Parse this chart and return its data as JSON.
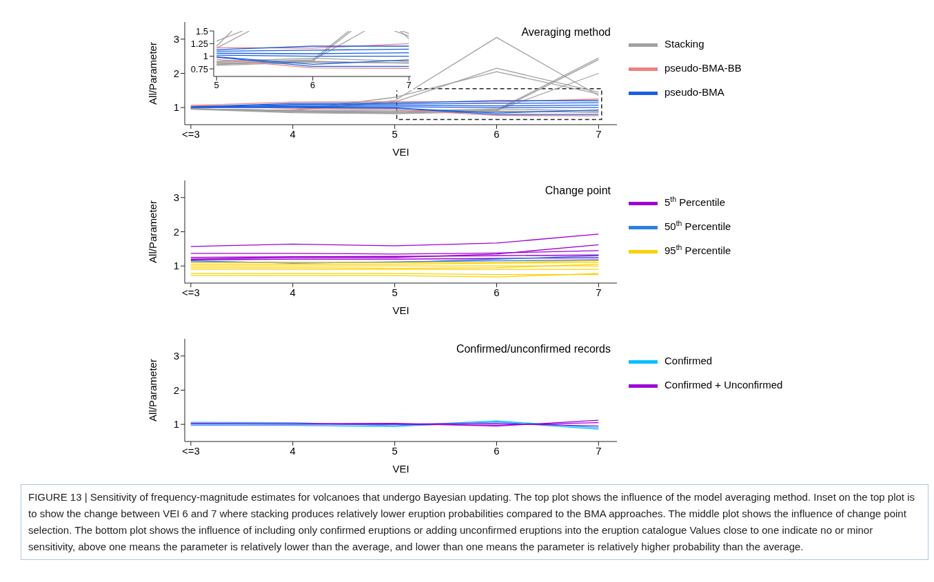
{
  "chart_data": [
    {
      "type": "line",
      "title": "Averaging method",
      "xlabel": "VEI",
      "ylabel": "All/Parameter",
      "categories": [
        "<=3",
        "4",
        "5",
        "6",
        "7"
      ],
      "ylim": [
        0.5,
        3.5
      ],
      "yticks": [
        1,
        2,
        3
      ],
      "legend": "right",
      "series": [
        {
          "name": "Stacking",
          "color": "#a0a0a0",
          "values": [
            0.96,
            0.92,
            1.2,
            3.05,
            1.35
          ]
        },
        {
          "color": "#a0a0a0",
          "values": [
            0.96,
            0.92,
            1.16,
            2.15,
            1.45
          ]
        },
        {
          "color": "#a0a0a0",
          "values": [
            0.96,
            0.92,
            1.3,
            2.05,
            1.4
          ]
        },
        {
          "color": "#a0a0a0",
          "values": [
            0.96,
            0.9,
            0.88,
            0.93,
            2.45
          ]
        },
        {
          "color": "#a0a0a0",
          "values": [
            0.96,
            0.9,
            0.86,
            0.9,
            2.4
          ]
        },
        {
          "color": "#a0a0a0",
          "values": [
            0.96,
            0.88,
            0.84,
            0.92,
            2.0
          ]
        },
        {
          "color": "#a0a0a0",
          "values": [
            0.96,
            0.87,
            0.84,
            0.9,
            0.86
          ]
        },
        {
          "color": "#a0a0a0",
          "values": [
            0.95,
            0.85,
            0.82,
            0.88,
            0.87
          ]
        },
        {
          "color": "#a0a0a0",
          "values": [
            0.96,
            0.92,
            0.9,
            0.96,
            0.9
          ]
        },
        {
          "name": "pseudo-BMA-BB",
          "color": "#f08080",
          "values": [
            1.06,
            1.16,
            1.17,
            1.16,
            1.25
          ]
        },
        {
          "color": "#f08080",
          "values": [
            1.06,
            0.97,
            0.94,
            0.77,
            0.76
          ]
        },
        {
          "name": "pseudo-BMA",
          "color": "#1a5fe0",
          "values": [
            1.02,
            1.12,
            1.13,
            1.2,
            1.2
          ]
        },
        {
          "color": "#1a5fe0",
          "values": [
            1.02,
            1.09,
            1.1,
            1.12,
            1.14
          ]
        },
        {
          "color": "#1a5fe0",
          "values": [
            1.01,
            1.06,
            1.06,
            1.05,
            1.07
          ]
        },
        {
          "color": "#1a5fe0",
          "values": [
            1.01,
            1.03,
            1.02,
            1.0,
            1.0
          ]
        },
        {
          "color": "#1a5fe0",
          "values": [
            1.0,
            1.0,
            0.98,
            0.8,
            0.8
          ]
        },
        {
          "color": "#1a5fe0",
          "values": [
            1.0,
            1.02,
            0.99,
            0.84,
            0.93
          ]
        }
      ]
    },
    {
      "type": "line",
      "xlim": [
        4.97,
        7.02
      ],
      "xticks": [
        5,
        6,
        7
      ],
      "ylim": [
        0.6,
        1.5
      ],
      "yticks": [
        {
          "value": 0.75,
          "label": "0.75"
        },
        1,
        1.25,
        1.5
      ],
      "series": [
        {
          "color": "#a0a0a0",
          "x": [
            5,
            5.16,
            6,
            6.91,
            7
          ],
          "values": [
            1.2,
            1.5,
            null,
            1.5,
            1.35
          ]
        },
        {
          "color": "#a0a0a0",
          "x": [
            5,
            5.34,
            6,
            6.93,
            7
          ],
          "values": [
            1.16,
            1.5,
            null,
            1.5,
            1.45
          ]
        },
        {
          "color": "#a0a0a0",
          "x": [
            5,
            5.27,
            6,
            6.85,
            7
          ],
          "values": [
            1.3,
            1.5,
            null,
            1.5,
            1.4
          ]
        },
        {
          "color": "#a0a0a0",
          "x": [
            5,
            6,
            6.375
          ],
          "values": [
            0.88,
            0.93,
            1.5
          ]
        },
        {
          "color": "#a0a0a0",
          "x": [
            5,
            6,
            6.4
          ],
          "values": [
            0.86,
            0.9,
            1.5
          ]
        },
        {
          "color": "#a0a0a0",
          "x": [
            5,
            6,
            6.54
          ],
          "values": [
            0.84,
            0.92,
            1.5
          ]
        },
        {
          "color": "#a0a0a0",
          "x": [
            5,
            6,
            7
          ],
          "values": [
            0.84,
            0.9,
            0.86
          ]
        },
        {
          "color": "#a0a0a0",
          "x": [
            5,
            6,
            7
          ],
          "values": [
            0.82,
            0.88,
            0.87
          ]
        },
        {
          "color": "#a0a0a0",
          "x": [
            5,
            6,
            7
          ],
          "values": [
            0.9,
            0.96,
            0.9
          ]
        },
        {
          "color": "#f08080",
          "x": [
            5,
            6,
            7
          ],
          "values": [
            1.17,
            1.16,
            1.25
          ]
        },
        {
          "color": "#f08080",
          "x": [
            5,
            6,
            7
          ],
          "values": [
            0.94,
            0.77,
            0.76
          ]
        },
        {
          "color": "#1a5fe0",
          "x": [
            5,
            6,
            7
          ],
          "values": [
            1.13,
            1.2,
            1.2
          ]
        },
        {
          "color": "#1a5fe0",
          "x": [
            5,
            6,
            7
          ],
          "values": [
            1.1,
            1.12,
            1.14
          ]
        },
        {
          "color": "#1a5fe0",
          "x": [
            5,
            6,
            7
          ],
          "values": [
            1.06,
            1.05,
            1.07
          ]
        },
        {
          "color": "#1a5fe0",
          "x": [
            5,
            6,
            7
          ],
          "values": [
            1.02,
            1.0,
            1.0
          ]
        },
        {
          "color": "#1a5fe0",
          "x": [
            5,
            6,
            7
          ],
          "values": [
            0.98,
            0.8,
            0.8
          ]
        },
        {
          "color": "#1a5fe0",
          "x": [
            5,
            6,
            7
          ],
          "values": [
            0.99,
            0.84,
            0.93
          ]
        }
      ]
    },
    {
      "type": "line",
      "title": "Change point",
      "xlabel": "VEI",
      "ylabel": "All/Parameter",
      "categories": [
        "<=3",
        "4",
        "5",
        "6",
        "7"
      ],
      "ylim": [
        0.5,
        3.5
      ],
      "yticks": [
        1,
        2,
        3
      ],
      "legend": "right",
      "series": [
        {
          "name": "5$^{th}$ Percentile",
          "color": "#a000d0",
          "values": [
            1.57,
            1.64,
            1.59,
            1.67,
            1.93
          ]
        },
        {
          "color": "#a000d0",
          "values": [
            1.37,
            1.37,
            1.35,
            1.38,
            1.45
          ]
        },
        {
          "color": "#a000d0",
          "values": [
            1.2,
            1.25,
            1.25,
            1.35,
            1.62
          ]
        },
        {
          "color": "#a000d0",
          "values": [
            1.25,
            1.27,
            1.28,
            1.3,
            1.32
          ]
        },
        {
          "color": "#a000d0",
          "values": [
            1.18,
            1.2,
            1.2,
            1.22,
            1.24
          ]
        },
        {
          "name": "50$^{th}$ Percentile",
          "color": "#2a80e0",
          "values": [
            1.15,
            1.08,
            1.12,
            1.15,
            1.18
          ]
        },
        {
          "color": "#2a80e0",
          "values": [
            1.12,
            1.1,
            1.1,
            1.2,
            1.3
          ]
        },
        {
          "name": "95$^{th}$ Percentile",
          "color": "#ffd000",
          "values": [
            1.1,
            1.1,
            1.1,
            1.1,
            1.15
          ]
        },
        {
          "color": "#ffd000",
          "values": [
            1.0,
            1.0,
            1.0,
            1.0,
            1.0
          ]
        },
        {
          "color": "#ffd000",
          "values": [
            0.9,
            0.9,
            0.9,
            0.9,
            0.9
          ]
        },
        {
          "color": "#ffd000",
          "values": [
            0.95,
            0.95,
            0.93,
            0.95,
            1.05
          ]
        },
        {
          "color": "#ffd000",
          "values": [
            0.78,
            0.78,
            0.78,
            0.75,
            0.75
          ]
        },
        {
          "color": "#ffd000",
          "values": [
            0.72,
            0.72,
            0.72,
            0.68,
            0.78
          ]
        },
        {
          "color": "#ffd000",
          "values": [
            1.05,
            1.05,
            1.05,
            1.08,
            1.1
          ]
        }
      ]
    },
    {
      "type": "line",
      "title": "Confirmed/unconfirmed records",
      "xlabel": "VEI",
      "ylabel": "All/Parameter",
      "categories": [
        "<=3",
        "4",
        "5",
        "6",
        "7"
      ],
      "ylim": [
        0.5,
        3.5
      ],
      "yticks": [
        1,
        2,
        3
      ],
      "legend": "right",
      "annotations": [
        "FIGURE 13 | Sensitivity of frequency-magnitude estimates for volcanoes that undergo Bayesian updating. The top plot shows the influence of the model averaging method. Inset on the top plot is to show the change between VEI 6 and 7 where stacking produces relatively lower eruption probabilities compared to the BMA approaches. The middle plot shows the influence of change point selection. The bottom plot shows the influence of including only confirmed eruptions or adding unconfirmed eruptions into the eruption catalogue Values close to one indicate no or minor sensitivity, above one means the parameter is relatively lower than the average, and lower than one means the parameter is relatively higher probability than the average."
      ],
      "series": [
        {
          "name": "Confirmed",
          "color": "#00bfff",
          "values": [
            1.06,
            1.05,
            0.96,
            1.1,
            0.9
          ]
        },
        {
          "color": "#00bfff",
          "values": [
            0.97,
            0.97,
            0.94,
            1.07,
            0.86
          ]
        },
        {
          "name": "Confirmed + Unconfirmed",
          "color": "#9b00d6",
          "values": [
            1.02,
            1.01,
            1.0,
            0.98,
            1.05
          ]
        },
        {
          "color": "#9b00d6",
          "values": [
            1.02,
            1.02,
            1.03,
            0.95,
            1.12
          ]
        },
        {
          "color": "#9b00d6",
          "values": [
            1.01,
            1.01,
            1.01,
            1.03,
            0.95
          ]
        }
      ]
    }
  ]
}
